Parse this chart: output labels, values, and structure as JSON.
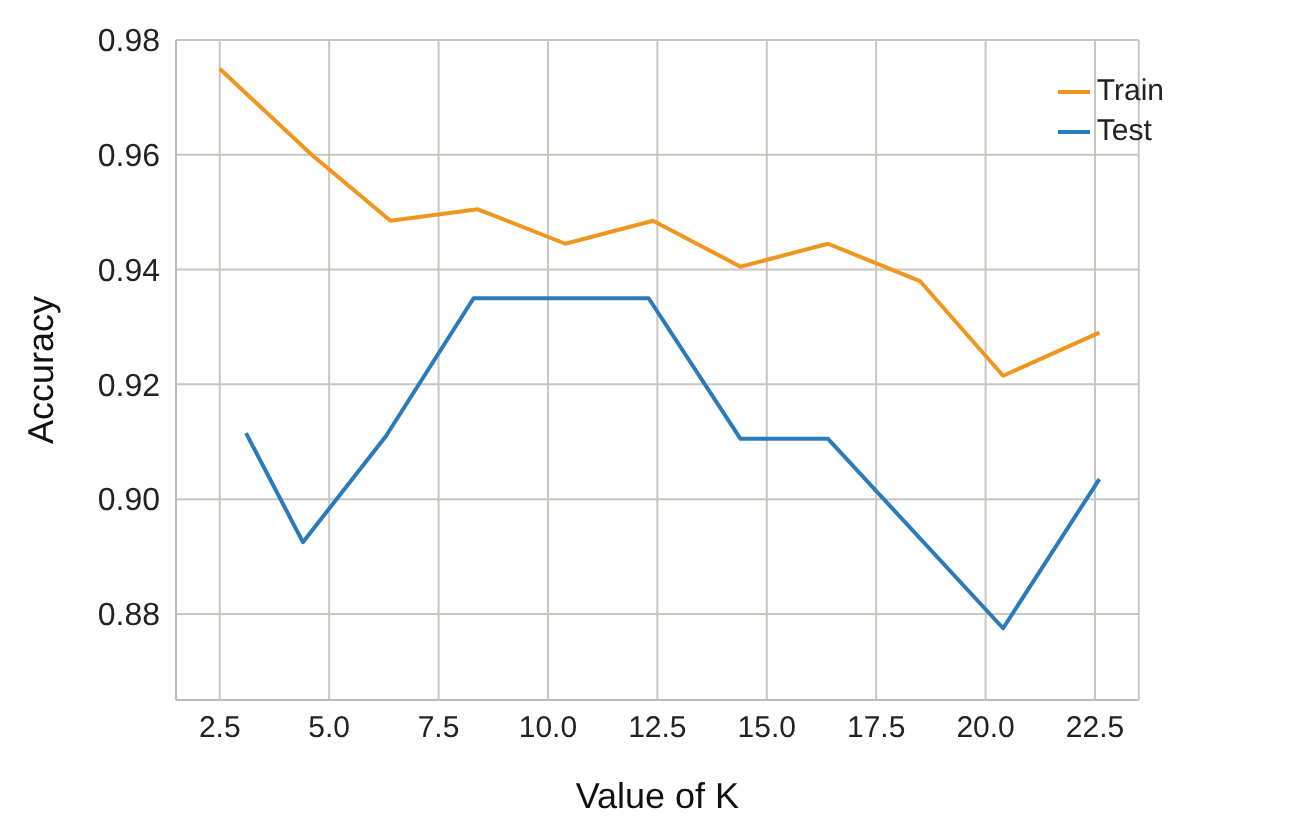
{
  "chart_data": {
    "type": "line",
    "xlabel": "Value of K",
    "ylabel": "Accuracy",
    "xlim": [
      1.5,
      23.5
    ],
    "xticks": [
      {
        "value": 2.5,
        "label": "2.5"
      },
      {
        "value": 5,
        "label": "5.0"
      },
      {
        "value": 7.5,
        "label": "7.5"
      },
      {
        "value": 10,
        "label": "10.0"
      },
      {
        "value": 12.5,
        "label": "12.5"
      },
      {
        "value": 15,
        "label": "15.0"
      },
      {
        "value": 17.5,
        "label": "17.5"
      },
      {
        "value": 20,
        "label": "20.0"
      },
      {
        "value": 22.5,
        "label": "22.5"
      }
    ],
    "ylim": [
      0.865,
      0.98
    ],
    "yticks": [
      {
        "value": 0.88,
        "label": "0.88"
      },
      {
        "value": 0.9,
        "label": "0.90"
      },
      {
        "value": 0.92,
        "label": "0.92"
      },
      {
        "value": 0.94,
        "label": "0.94"
      },
      {
        "value": 0.96,
        "label": "0.96"
      },
      {
        "value": 0.98,
        "label": "0.98"
      }
    ],
    "grid": true,
    "legend": "top right",
    "line_style": "solid",
    "series": [
      {
        "name": "Train",
        "color": "#f0961e",
        "x": [
          2.5,
          4.6,
          6.4,
          8.4,
          10.4,
          12.4,
          14.4,
          16.4,
          18.5,
          20.4,
          22.6
        ],
        "values": [
          0.975,
          0.96,
          0.9485,
          0.9505,
          0.9445,
          0.9485,
          0.9405,
          0.9445,
          0.938,
          0.9215,
          0.929
        ]
      },
      {
        "name": "Test",
        "color": "#2b7bba",
        "x": [
          3.1,
          4.4,
          6.3,
          8.3,
          12.3,
          14.4,
          16.4,
          20.4,
          22.6
        ],
        "values": [
          0.9115,
          0.8925,
          0.911,
          0.935,
          0.935,
          0.9105,
          0.9105,
          0.8775,
          0.9035
        ]
      }
    ]
  }
}
